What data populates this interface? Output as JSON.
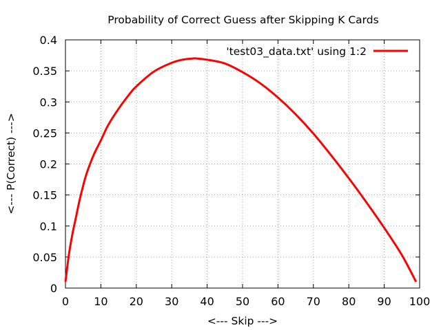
{
  "chart_data": {
    "type": "line",
    "title": "Probability of Correct Guess after Skipping K Cards",
    "xlabel": "<--- Skip --->",
    "ylabel": "<--- P(Correct) --->",
    "xlim": [
      0,
      100
    ],
    "ylim": [
      0,
      0.4
    ],
    "xticks": [
      "0",
      "10",
      "20",
      "30",
      "40",
      "50",
      "60",
      "70",
      "80",
      "90",
      "100"
    ],
    "yticks": [
      "0",
      "0.05",
      "0.1",
      "0.15",
      "0.2",
      "0.25",
      "0.3",
      "0.35",
      "0.4"
    ],
    "grid": true,
    "legend_position": "top-right",
    "series": [
      {
        "name": "'test03_data.txt' using 1:2",
        "color": "#ff0000",
        "x": [
          0,
          1,
          2,
          3,
          4,
          5,
          6,
          8,
          10,
          12,
          15,
          18,
          20,
          25,
          30,
          33,
          36,
          37,
          40,
          45,
          50,
          55,
          60,
          65,
          70,
          75,
          80,
          85,
          90,
          95,
          99
        ],
        "y": [
          0.01,
          0.055,
          0.088,
          0.115,
          0.142,
          0.165,
          0.185,
          0.215,
          0.238,
          0.262,
          0.289,
          0.312,
          0.325,
          0.349,
          0.363,
          0.368,
          0.37,
          0.37,
          0.368,
          0.362,
          0.348,
          0.33,
          0.307,
          0.28,
          0.249,
          0.214,
          0.177,
          0.138,
          0.097,
          0.053,
          0.01
        ]
      }
    ]
  }
}
